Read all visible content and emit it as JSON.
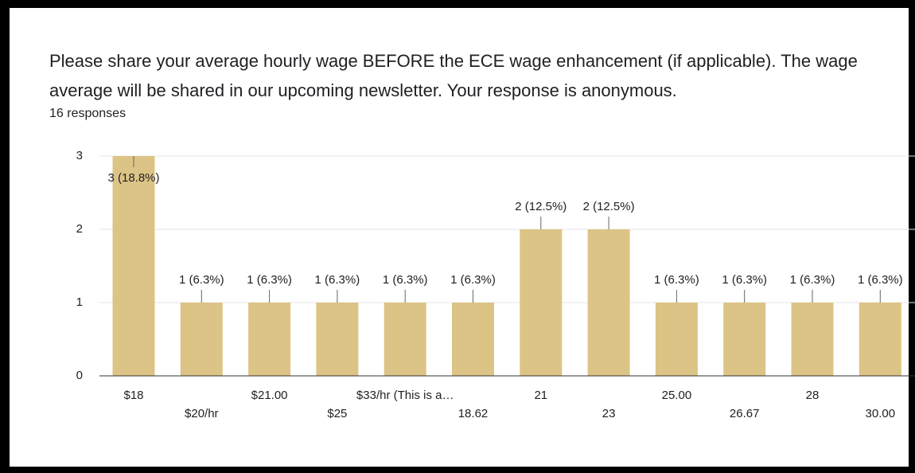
{
  "chart_data": {
    "type": "bar",
    "title": "Please share your average hourly wage BEFORE the ECE wage enhancement (if applicable). The wage average will be shared in our upcoming newsletter. Your response is anonymous.",
    "subtitle": "16 responses",
    "categories": [
      "$18",
      "$20/hr",
      "$21.00",
      "$25",
      "$33/hr (This is a…",
      "18.62",
      "21",
      "23",
      "25.00",
      "26.67",
      "28",
      "30.00"
    ],
    "values": [
      3,
      1,
      1,
      1,
      1,
      1,
      2,
      2,
      1,
      1,
      1,
      1
    ],
    "value_labels": [
      "3 (18.8%)",
      "1 (6.3%)",
      "1 (6.3%)",
      "1 (6.3%)",
      "1 (6.3%)",
      "1 (6.3%)",
      "2 (12.5%)",
      "2 (12.5%)",
      "1 (6.3%)",
      "1 (6.3%)",
      "1 (6.3%)",
      "1 (6.3%)"
    ],
    "color": "#dcc486",
    "ylim": [
      0,
      3
    ],
    "yticks": [
      0,
      1,
      2,
      3
    ],
    "grid": true
  }
}
